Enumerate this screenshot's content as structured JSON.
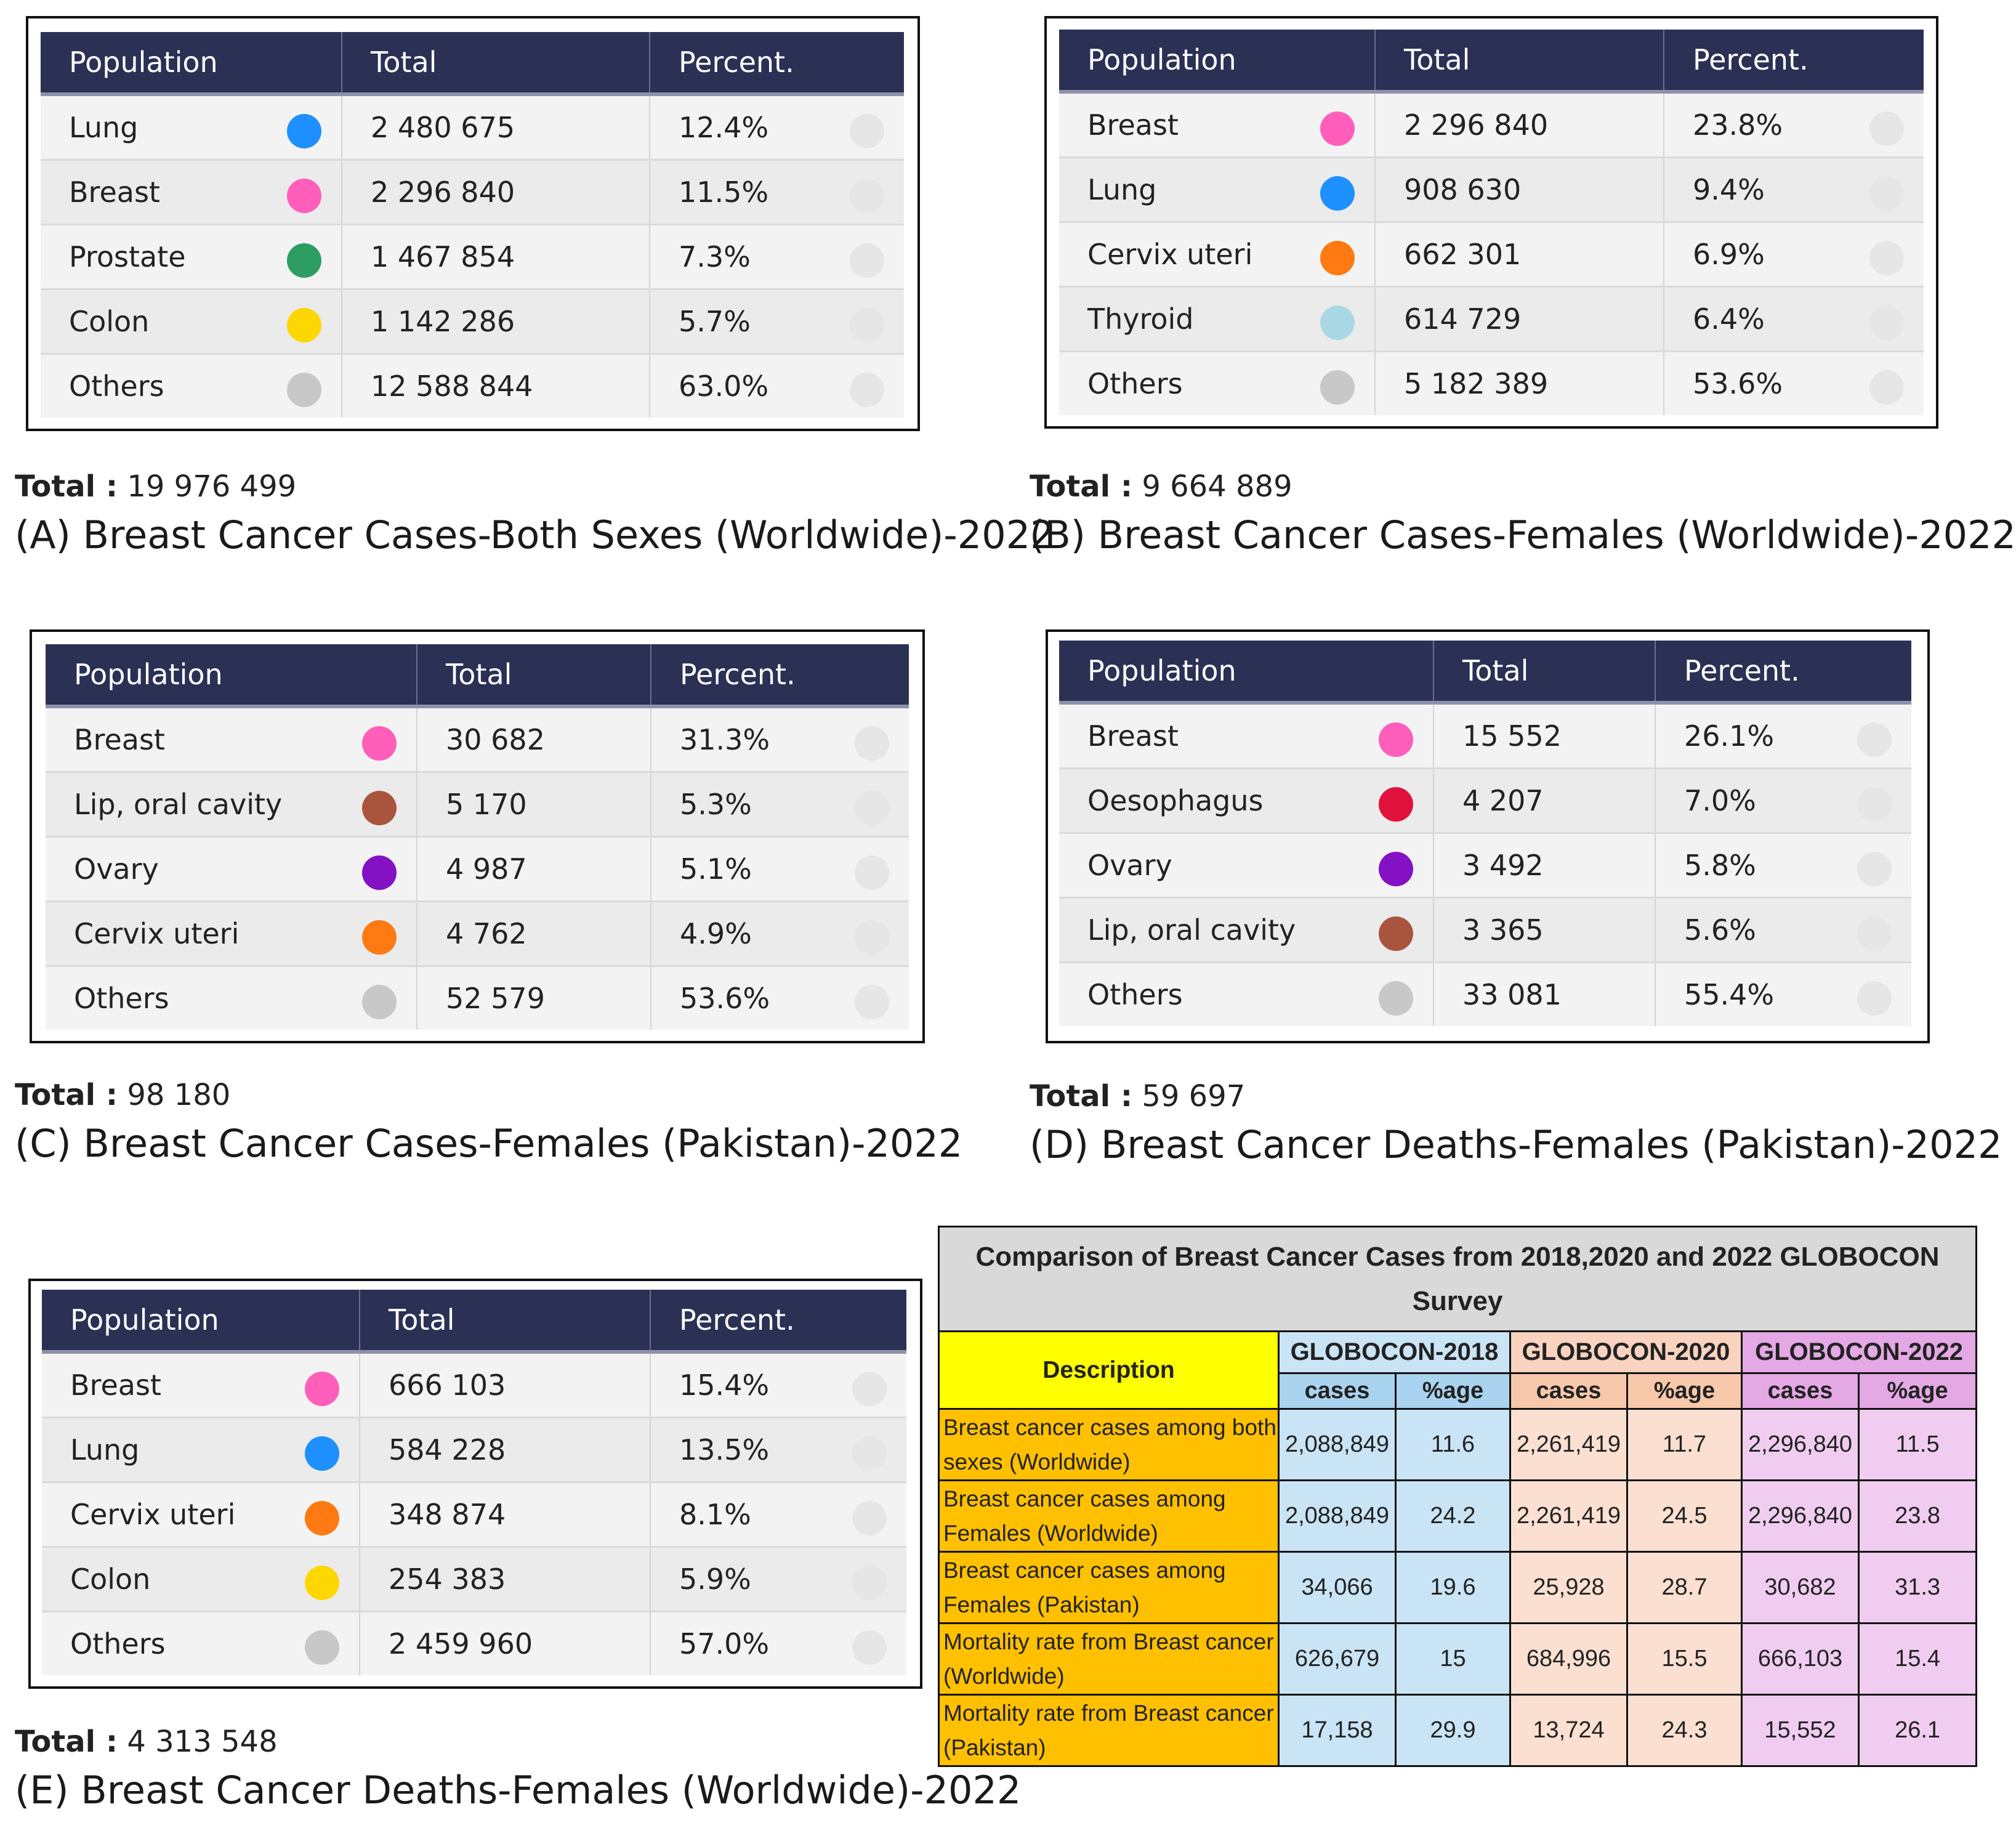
{
  "chart_data": [
    {
      "type": "table",
      "id": "A",
      "columns": [
        "Population",
        "Total",
        "Percent."
      ],
      "rows": [
        {
          "name": "Lung",
          "color": "#1e90ff",
          "total": "2 480 675",
          "percent": "12.4%"
        },
        {
          "name": "Breast",
          "color": "#ff5fba",
          "total": "2 296 840",
          "percent": "11.5%"
        },
        {
          "name": "Prostate",
          "color": "#2e9d63",
          "total": "1 467 854",
          "percent": "7.3%"
        },
        {
          "name": "Colon",
          "color": "#ffd700",
          "total": "1 142 286",
          "percent": "5.7%"
        },
        {
          "name": "Others",
          "color": "#c8c8c8",
          "total": "12 588 844",
          "percent": "63.0%"
        }
      ],
      "total_label": "Total :",
      "total_value": "19 976 499",
      "title": "(A) Breast Cancer Cases-Both Sexes (Worldwide)-2022"
    },
    {
      "type": "table",
      "id": "B",
      "columns": [
        "Population",
        "Total",
        "Percent."
      ],
      "rows": [
        {
          "name": "Breast",
          "color": "#ff5fba",
          "total": "2 296 840",
          "percent": "23.8%"
        },
        {
          "name": "Lung",
          "color": "#1e90ff",
          "total": "908 630",
          "percent": "9.4%"
        },
        {
          "name": "Cervix uteri",
          "color": "#ff7a12",
          "total": "662 301",
          "percent": "6.9%"
        },
        {
          "name": "Thyroid",
          "color": "#a9d8e4",
          "total": "614 729",
          "percent": "6.4%"
        },
        {
          "name": "Others",
          "color": "#c8c8c8",
          "total": "5 182 389",
          "percent": "53.6%"
        }
      ],
      "total_label": "Total :",
      "total_value": "9 664 889",
      "title": "(B) Breast Cancer Cases-Females (Worldwide)-2022"
    },
    {
      "type": "table",
      "id": "C",
      "columns": [
        "Population",
        "Total",
        "Percent."
      ],
      "rows": [
        {
          "name": "Breast",
          "color": "#ff5fba",
          "total": "30 682",
          "percent": "31.3%"
        },
        {
          "name": "Lip, oral cavity",
          "color": "#a9543f",
          "total": "5 170",
          "percent": "5.3%"
        },
        {
          "name": "Ovary",
          "color": "#8411c4",
          "total": "4 987",
          "percent": "5.1%"
        },
        {
          "name": "Cervix uteri",
          "color": "#ff7a12",
          "total": "4 762",
          "percent": "4.9%"
        },
        {
          "name": "Others",
          "color": "#c8c8c8",
          "total": "52 579",
          "percent": "53.6%"
        }
      ],
      "total_label": "Total :",
      "total_value": "98 180",
      "title": "(C) Breast Cancer Cases-Females (Pakistan)-2022"
    },
    {
      "type": "table",
      "id": "D",
      "columns": [
        "Population",
        "Total",
        "Percent."
      ],
      "rows": [
        {
          "name": "Breast",
          "color": "#ff5fba",
          "total": "15 552",
          "percent": "26.1%"
        },
        {
          "name": "Oesophagus",
          "color": "#e0123c",
          "total": "4 207",
          "percent": "7.0%"
        },
        {
          "name": "Ovary",
          "color": "#8411c4",
          "total": "3 492",
          "percent": "5.8%"
        },
        {
          "name": "Lip, oral cavity",
          "color": "#a9543f",
          "total": "3 365",
          "percent": "5.6%"
        },
        {
          "name": "Others",
          "color": "#c8c8c8",
          "total": "33 081",
          "percent": "55.4%"
        }
      ],
      "total_label": "Total :",
      "total_value": "59 697",
      "title": "(D) Breast Cancer Deaths-Females (Pakistan)-2022"
    },
    {
      "type": "table",
      "id": "E",
      "columns": [
        "Population",
        "Total",
        "Percent."
      ],
      "rows": [
        {
          "name": "Breast",
          "color": "#ff5fba",
          "total": "666 103",
          "percent": "15.4%"
        },
        {
          "name": "Lung",
          "color": "#1e90ff",
          "total": "584 228",
          "percent": "13.5%"
        },
        {
          "name": "Cervix uteri",
          "color": "#ff7a12",
          "total": "348 874",
          "percent": "8.1%"
        },
        {
          "name": "Colon",
          "color": "#ffd700",
          "total": "254 383",
          "percent": "5.9%"
        },
        {
          "name": "Others",
          "color": "#c8c8c8",
          "total": "2 459 960",
          "percent": "57.0%"
        }
      ],
      "total_label": "Total :",
      "total_value": "4 313 548",
      "title": "(E) Breast Cancer Deaths-Females (Worldwide)-2022"
    },
    {
      "type": "table",
      "id": "comparison",
      "title": "Comparison of Breast Cancer Cases from 2018,2020 and 2022 GLOBOCON Survey",
      "description_header": "Description",
      "groups": [
        "GLOBOCON-2018",
        "GLOBOCON-2020",
        "GLOBOCON-2022"
      ],
      "subheaders": [
        "cases",
        "%age"
      ],
      "rows": [
        {
          "description": "Breast cancer cases among both sexes (Worldwide)",
          "values": [
            "2,088,849",
            "11.6",
            "2,261,419",
            "11.7",
            "2,296,840",
            "11.5"
          ]
        },
        {
          "description": "Breast cancer cases among Females (Worldwide)",
          "values": [
            "2,088,849",
            "24.2",
            "2,261,419",
            "24.5",
            "2,296,840",
            "23.8"
          ]
        },
        {
          "description": "Breast cancer cases among Females (Pakistan)",
          "values": [
            "34,066",
            "19.6",
            "25,928",
            "28.7",
            "30,682",
            "31.3"
          ]
        },
        {
          "description": "Mortality rate from Breast cancer (Worldwide)",
          "values": [
            "626,679",
            "15",
            "684,996",
            "15.5",
            "666,103",
            "15.4"
          ]
        },
        {
          "description": "Mortality rate from Breast cancer (Pakistan)",
          "values": [
            "17,158",
            "29.9",
            "13,724",
            "24.3",
            "15,552",
            "26.1"
          ]
        }
      ]
    }
  ]
}
